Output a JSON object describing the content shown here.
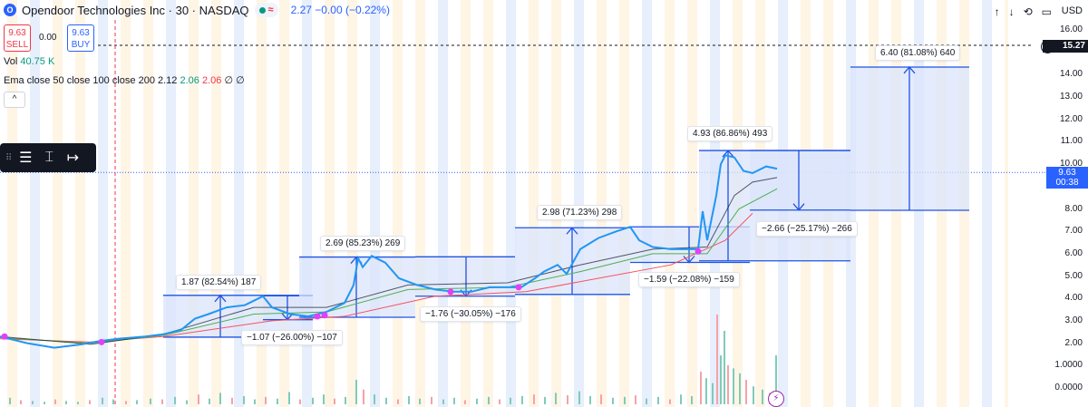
{
  "header": {
    "logo_letter": "O",
    "title": "Opendoor Technologies Inc · 30 · NASDAQ",
    "status_symbol": "≈",
    "change_text": "2.27 −0.00 (−0.22%)"
  },
  "trade": {
    "sell_price": "9.63",
    "sell_label": "SELL",
    "spread": "0.00",
    "buy_price": "9.63",
    "buy_label": "BUY"
  },
  "indicators": {
    "vol_label": "Vol",
    "vol_value": "40.75 K",
    "ema_label": "Ema close 50 close 100 close 200",
    "ema_v1": "2.12",
    "ema_v2": "2.06",
    "ema_v3": "2.06",
    "ema_extra": "∅ ∅",
    "collapse_glyph": "^"
  },
  "toolbar": {
    "grip": "⠿",
    "tool1": "☰",
    "tool2": "⌶",
    "tool3": "↦"
  },
  "top_icons": {
    "up": "↑",
    "down": "↓",
    "reset": "⟲",
    "fit": "▭"
  },
  "price_axis": {
    "currency": "USD",
    "labels": [
      "16.00",
      "14.00",
      "13.00",
      "12.00",
      "11.00",
      "10.00",
      "9.00",
      "8.00",
      "7.00",
      "6.00",
      "5.00",
      "4.00",
      "3.00",
      "2.00",
      "1.0000",
      "0.0000"
    ],
    "alert_value": "15.27",
    "alert_plus": "+",
    "current_price": "9.63",
    "countdown": "00:38"
  },
  "measurements": [
    {
      "text": "1.87 (82.54%) 187"
    },
    {
      "text": "−1.07 (−26.00%) −107"
    },
    {
      "text": "2.69 (85.23%) 269"
    },
    {
      "text": "−1.76 (−30.05%) −176"
    },
    {
      "text": "2.98 (71.23%) 298"
    },
    {
      "text": "−1.59 (−22.08%) −159"
    },
    {
      "text": "4.93 (86.86%) 493"
    },
    {
      "text": "−2.66 (−25.17%) −266"
    },
    {
      "text": "6.40 (81.08%) 640"
    }
  ],
  "bolt_glyph": "⚡",
  "colors": {
    "accent": "#2962ff",
    "up": "#089981",
    "down": "#f23645",
    "price_line": "#2196f3",
    "measure_fill": "#dbe4fb",
    "measure_line": "#1e53e5",
    "session_stripe": "#fff3e0",
    "stripe_blue": "#e3ecfc"
  },
  "chart_data": {
    "type": "line",
    "ylim": [
      0,
      16
    ],
    "price": [
      [
        0,
        2.3
      ],
      [
        30,
        2.0
      ],
      [
        60,
        1.8
      ],
      [
        90,
        1.95
      ],
      [
        110,
        2.1
      ],
      [
        130,
        2.2
      ],
      [
        160,
        2.3
      ],
      [
        180,
        2.4
      ],
      [
        200,
        2.6
      ],
      [
        215,
        3.1
      ],
      [
        230,
        3.3
      ],
      [
        250,
        3.6
      ],
      [
        270,
        3.7
      ],
      [
        290,
        4.1
      ],
      [
        300,
        3.6
      ],
      [
        320,
        3.3
      ],
      [
        340,
        3.2
      ],
      [
        360,
        3.4
      ],
      [
        380,
        3.8
      ],
      [
        390,
        4.6
      ],
      [
        395,
        5.8
      ],
      [
        400,
        5.4
      ],
      [
        410,
        5.9
      ],
      [
        425,
        5.6
      ],
      [
        440,
        4.9
      ],
      [
        460,
        4.6
      ],
      [
        480,
        4.4
      ],
      [
        500,
        4.3
      ],
      [
        520,
        4.3
      ],
      [
        540,
        4.5
      ],
      [
        560,
        4.5
      ],
      [
        575,
        4.5
      ],
      [
        590,
        4.9
      ],
      [
        600,
        5.2
      ],
      [
        615,
        5.5
      ],
      [
        625,
        5.1
      ],
      [
        640,
        6.2
      ],
      [
        660,
        6.7
      ],
      [
        680,
        7.0
      ],
      [
        695,
        7.2
      ],
      [
        705,
        6.6
      ],
      [
        720,
        6.3
      ],
      [
        740,
        6.2
      ],
      [
        760,
        6.2
      ],
      [
        770,
        6.2
      ],
      [
        775,
        7.9
      ],
      [
        780,
        6.6
      ],
      [
        790,
        8.6
      ],
      [
        795,
        10.0
      ],
      [
        800,
        10.4
      ],
      [
        810,
        10.3
      ],
      [
        820,
        9.7
      ],
      [
        830,
        9.6
      ],
      [
        845,
        9.9
      ],
      [
        857,
        9.8
      ]
    ],
    "ema50": [
      [
        0,
        2.3
      ],
      [
        100,
        1.95
      ],
      [
        180,
        2.4
      ],
      [
        280,
        3.6
      ],
      [
        360,
        3.6
      ],
      [
        450,
        4.6
      ],
      [
        560,
        4.7
      ],
      [
        640,
        5.5
      ],
      [
        720,
        6.2
      ],
      [
        780,
        6.3
      ],
      [
        810,
        8.6
      ],
      [
        830,
        9.2
      ],
      [
        857,
        9.4
      ]
    ],
    "ema100": [
      [
        0,
        2.25
      ],
      [
        100,
        2.0
      ],
      [
        180,
        2.35
      ],
      [
        280,
        3.3
      ],
      [
        360,
        3.4
      ],
      [
        450,
        4.4
      ],
      [
        560,
        4.5
      ],
      [
        640,
        5.2
      ],
      [
        720,
        6.0
      ],
      [
        780,
        6.0
      ],
      [
        815,
        8.0
      ],
      [
        857,
        8.9
      ]
    ],
    "ema200": [
      [
        0,
        2.2
      ],
      [
        100,
        2.05
      ],
      [
        180,
        2.3
      ],
      [
        300,
        3.0
      ],
      [
        380,
        3.2
      ],
      [
        480,
        4.1
      ],
      [
        580,
        4.3
      ],
      [
        660,
        4.9
      ],
      [
        740,
        5.5
      ],
      [
        800,
        6.6
      ],
      [
        830,
        7.8
      ]
    ],
    "measures": [
      {
        "x1": 180,
        "x2": 345,
        "from": 2.27,
        "to": 4.14,
        "xArrow": 243
      },
      {
        "x1": 290,
        "x2": 345,
        "from": 4.12,
        "to": 3.05,
        "xArrow": 317
      },
      {
        "x1": 330,
        "x2": 458,
        "from": 3.16,
        "to": 5.85,
        "xArrow": 393
      },
      {
        "x1": 458,
        "x2": 568,
        "from": 5.86,
        "to": 4.1,
        "xArrow": 514
      },
      {
        "x1": 568,
        "x2": 695,
        "from": 4.18,
        "to": 7.16,
        "xArrow": 631
      },
      {
        "x1": 695,
        "x2": 827,
        "from": 7.2,
        "to": 5.61,
        "xArrow": 760
      },
      {
        "x1": 771,
        "x2": 938,
        "from": 5.68,
        "to": 10.61,
        "xArrow": 803
      },
      {
        "x1": 827,
        "x2": 938,
        "from": 10.61,
        "to": 7.95,
        "xArrow": 881
      },
      {
        "x1": 938,
        "x2": 1069,
        "from": 7.94,
        "to": 14.34,
        "xArrow": 1003
      }
    ],
    "volume": [
      [
        10,
        8
      ],
      [
        22,
        5
      ],
      [
        35,
        4
      ],
      [
        48,
        3
      ],
      [
        60,
        6
      ],
      [
        72,
        4
      ],
      [
        85,
        3
      ],
      [
        98,
        5
      ],
      [
        112,
        8
      ],
      [
        124,
        6
      ],
      [
        138,
        4
      ],
      [
        150,
        5
      ],
      [
        165,
        7
      ],
      [
        178,
        6
      ],
      [
        192,
        9
      ],
      [
        205,
        5
      ],
      [
        218,
        12
      ],
      [
        230,
        7
      ],
      [
        242,
        14
      ],
      [
        255,
        8
      ],
      [
        268,
        10
      ],
      [
        280,
        6
      ],
      [
        292,
        9
      ],
      [
        305,
        7
      ],
      [
        318,
        15
      ],
      [
        330,
        6
      ],
      [
        344,
        8
      ],
      [
        356,
        12
      ],
      [
        368,
        7
      ],
      [
        380,
        9
      ],
      [
        392,
        30
      ],
      [
        400,
        18
      ],
      [
        412,
        12
      ],
      [
        425,
        8
      ],
      [
        438,
        6
      ],
      [
        450,
        10
      ],
      [
        462,
        7
      ],
      [
        475,
        9
      ],
      [
        488,
        6
      ],
      [
        500,
        8
      ],
      [
        512,
        5
      ],
      [
        525,
        7
      ],
      [
        538,
        9
      ],
      [
        550,
        6
      ],
      [
        562,
        8
      ],
      [
        575,
        10
      ],
      [
        588,
        12
      ],
      [
        600,
        9
      ],
      [
        612,
        14
      ],
      [
        625,
        11
      ],
      [
        638,
        16
      ],
      [
        650,
        10
      ],
      [
        662,
        12
      ],
      [
        675,
        8
      ],
      [
        688,
        9
      ],
      [
        700,
        11
      ],
      [
        712,
        7
      ],
      [
        725,
        9
      ],
      [
        738,
        6
      ],
      [
        750,
        12
      ],
      [
        762,
        10
      ],
      [
        772,
        40
      ],
      [
        778,
        32
      ],
      [
        785,
        26
      ],
      [
        790,
        110
      ],
      [
        794,
        60
      ],
      [
        798,
        90
      ],
      [
        802,
        48
      ],
      [
        808,
        44
      ],
      [
        815,
        38
      ],
      [
        822,
        30
      ],
      [
        830,
        22
      ],
      [
        840,
        18
      ],
      [
        848,
        14
      ],
      [
        855,
        60
      ]
    ]
  }
}
